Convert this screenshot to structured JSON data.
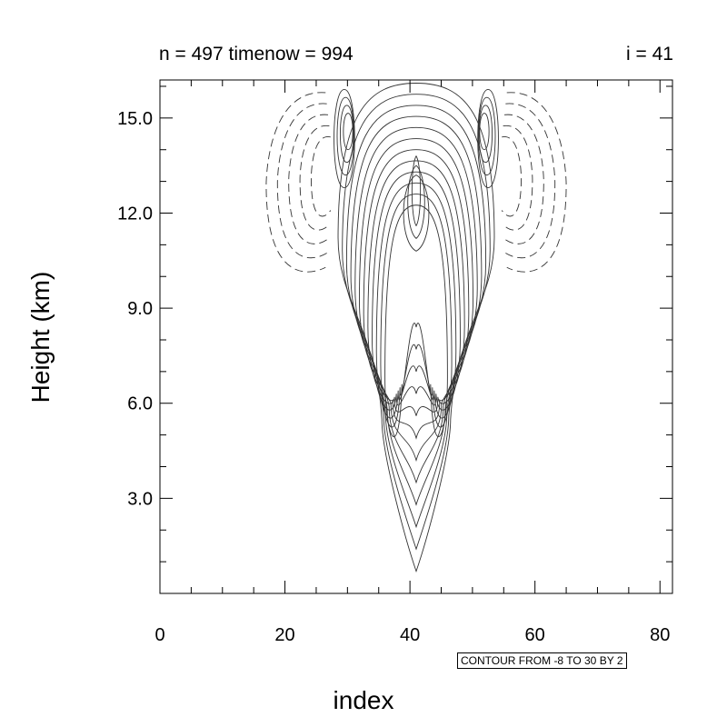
{
  "chart_data": {
    "type": "contour",
    "title_left": "n = 497 timenow = 994",
    "title_right": "i = 41",
    "xlabel": "index",
    "ylabel": "Height (km)",
    "xlim": [
      0,
      82
    ],
    "ylim": [
      0,
      16.2
    ],
    "xticks": [
      0,
      20,
      40,
      60,
      80
    ],
    "xtick_labels": [
      "0",
      "20",
      "40",
      "60",
      "80"
    ],
    "yticks": [
      3.0,
      6.0,
      9.0,
      12.0,
      15.0
    ],
    "ytick_labels": [
      "3.0",
      "6.0",
      "9.0",
      "12.0",
      "15.0"
    ],
    "contour_info": "CONTOUR FROM -8 TO 30 BY 2",
    "contour_levels": {
      "min": -8,
      "max": 30,
      "step": 2
    },
    "negative_contours": "dashed",
    "positive_contours": "solid",
    "center_index": 41,
    "top_height_km": 16.1,
    "bottom_height_km": 0.7
  }
}
